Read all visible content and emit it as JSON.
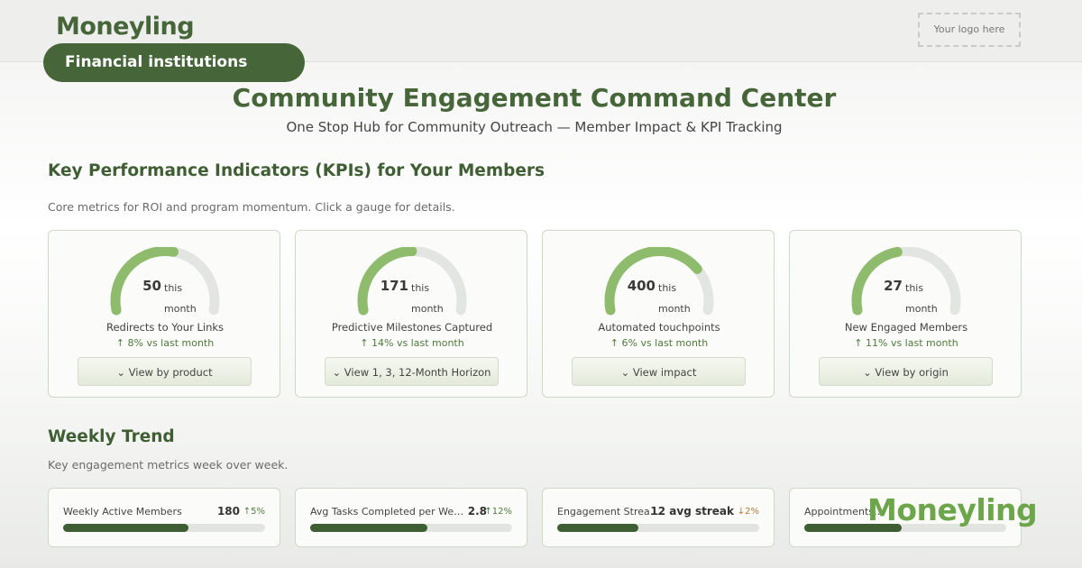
{
  "header": {
    "brand": "Moneyling",
    "segment": "Financial institutions",
    "logo_placeholder": "Your logo here"
  },
  "title": "Community Engagement Command Center",
  "subtitle": "One Stop Hub for Community Outreach — Member Impact & KPI Tracking",
  "kpi_section": {
    "heading": "Key Performance Indicators (KPIs) for Your Members",
    "description": "Core metrics for ROI and program momentum. Click a gauge for details.",
    "cards": [
      {
        "value": 50,
        "unit": "this month",
        "label": "Redirects to Your Links",
        "change": "↑ 8% vs last month",
        "button": "⌄ View by product"
      },
      {
        "value": 171,
        "unit": "this month",
        "label": "Predictive Milestones Captured",
        "change": "↑ 14% vs last month",
        "button": "⌄ View 1, 3, 12-Month Horizon"
      },
      {
        "value": 400,
        "unit": "this month",
        "label": "Automated touchpoints",
        "change": "↑ 6% vs last month",
        "button": "⌄ View impact"
      },
      {
        "value": 27,
        "unit": "this month",
        "label": "New Engaged Members",
        "change": "↑ 11% vs last month",
        "button": "⌄ View by origin"
      }
    ]
  },
  "trend_section": {
    "heading": "Weekly Trend",
    "description": "Key engagement metrics week over week.",
    "items": [
      {
        "name": "Weekly Active Members",
        "value": "180",
        "change": "↑5%"
      },
      {
        "name": "Avg Tasks Completed per We…",
        "value": "2.8",
        "change": "↑12%"
      },
      {
        "name": "Engagement Strea…",
        "value": "12 avg streak",
        "change": "↓2%"
      },
      {
        "name": "Appointments…"
      }
    ]
  },
  "watermark": "Moneyling"
}
